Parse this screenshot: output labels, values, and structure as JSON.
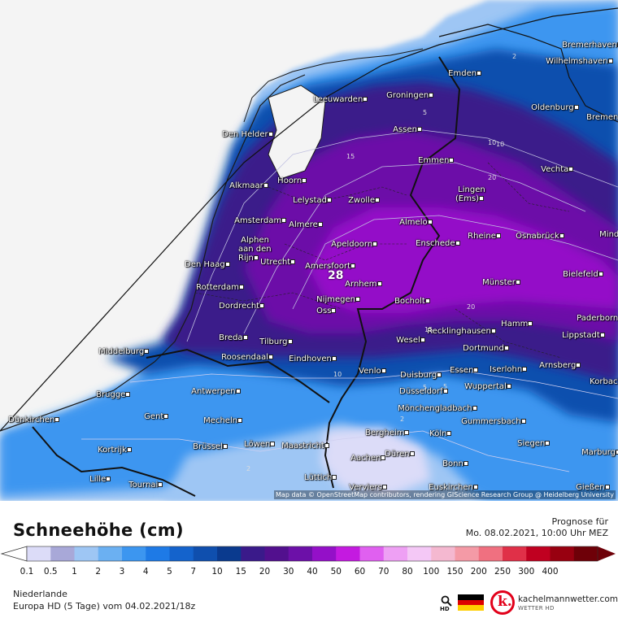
{
  "map": {
    "attribution": "Map data © OpenStreetMap contributors, rendering GIScience Research Group @ Heidelberg University",
    "max_value_label": "28",
    "cities": [
      {
        "name": "Bremerhaven"
      },
      {
        "name": "Wilhelmshaven"
      },
      {
        "name": "Emden"
      },
      {
        "name": "Groningen"
      },
      {
        "name": "Leeuwarden"
      },
      {
        "name": "Oldenburg"
      },
      {
        "name": "Bremen"
      },
      {
        "name": "Den Helder"
      },
      {
        "name": "Assen"
      },
      {
        "name": "Emmen"
      },
      {
        "name": "Vechta"
      },
      {
        "name": "Alkmaar"
      },
      {
        "name": "Hoorn"
      },
      {
        "name": "Lingen\n(Ems)"
      },
      {
        "name": "Lelystad"
      },
      {
        "name": "Zwolle"
      },
      {
        "name": "Amsterdam"
      },
      {
        "name": "Almere"
      },
      {
        "name": "Almelo"
      },
      {
        "name": "Rheine"
      },
      {
        "name": "Osnabrück"
      },
      {
        "name": "Minden"
      },
      {
        "name": "Alphen\naan den\nRijn"
      },
      {
        "name": "Apeldoorn"
      },
      {
        "name": "Enschede"
      },
      {
        "name": "Den Haag"
      },
      {
        "name": "Utrecht"
      },
      {
        "name": "Amersfoort"
      },
      {
        "name": "Bielefeld"
      },
      {
        "name": "Arnhem"
      },
      {
        "name": "Münster"
      },
      {
        "name": "Rotterdam"
      },
      {
        "name": "Nijmegen"
      },
      {
        "name": "Dordrecht"
      },
      {
        "name": "Oss"
      },
      {
        "name": "Bocholt"
      },
      {
        "name": "Paderborn"
      },
      {
        "name": "Hamm"
      },
      {
        "name": "Recklinghausen"
      },
      {
        "name": "Lippstadt"
      },
      {
        "name": "Breda"
      },
      {
        "name": "Tilburg"
      },
      {
        "name": "Wesel"
      },
      {
        "name": "Dortmund"
      },
      {
        "name": "Middelburg"
      },
      {
        "name": "Roosendaal"
      },
      {
        "name": "Eindhoven"
      },
      {
        "name": "Arnsberg"
      },
      {
        "name": "Venlo"
      },
      {
        "name": "Essen"
      },
      {
        "name": "Iserlohn"
      },
      {
        "name": "Duisburg"
      },
      {
        "name": "Korbach"
      },
      {
        "name": "Wuppertal"
      },
      {
        "name": "Antwerpen"
      },
      {
        "name": "Brugge"
      },
      {
        "name": "Düsseldorf"
      },
      {
        "name": "Mönchengladbach"
      },
      {
        "name": "Dünkirchen"
      },
      {
        "name": "Gent"
      },
      {
        "name": "Mecheln"
      },
      {
        "name": "Gummersbach"
      },
      {
        "name": "Bergheim"
      },
      {
        "name": "Köln"
      },
      {
        "name": "Siegen"
      },
      {
        "name": "Kortrijk"
      },
      {
        "name": "Brüssel"
      },
      {
        "name": "Löwen"
      },
      {
        "name": "Maastricht"
      },
      {
        "name": "Düren"
      },
      {
        "name": "Marburg"
      },
      {
        "name": "Aachen"
      },
      {
        "name": "Bonn"
      },
      {
        "name": "Lille"
      },
      {
        "name": "Lüttich"
      },
      {
        "name": "Tournai"
      },
      {
        "name": "Verviers"
      },
      {
        "name": "Euskirchen"
      },
      {
        "name": "Gießen"
      }
    ],
    "contour_labels": [
      "2",
      "5",
      "10",
      "15",
      "20",
      "20",
      "15",
      "10",
      "5",
      "2",
      "2",
      "10",
      "5"
    ]
  },
  "legend": {
    "title": "Schneehöhe (cm)",
    "forecast_label": "Prognose für",
    "forecast_time": "Mo. 08.02.2021, 10:00 Uhr MEZ",
    "ticks": [
      "0.1",
      "0.5",
      "1",
      "2",
      "3",
      "4",
      "5",
      "7",
      "10",
      "15",
      "20",
      "30",
      "40",
      "50",
      "60",
      "70",
      "80",
      "100",
      "150",
      "200",
      "250",
      "300",
      "400"
    ],
    "colors": [
      "#dcdcf8",
      "#a8a8d8",
      "#9ec6f4",
      "#6bb0f2",
      "#3c96f0",
      "#1e7ae6",
      "#1463cc",
      "#0f4fae",
      "#0a3a8e",
      "#3a1a8a",
      "#52108e",
      "#6c10a8",
      "#9410c8",
      "#c41ae0",
      "#e060f0",
      "#eea0f4",
      "#f4c8f6",
      "#f4b8d0",
      "#f49aa6",
      "#f07080",
      "#e03048",
      "#c00020",
      "#980010",
      "#6e0008"
    ]
  },
  "footer": {
    "region": "Niederlande",
    "model": "Europa HD (5 Tage) vom  04.02.2021/18z",
    "hd_label": "HD",
    "brand_name": "kachelmannwetter.com",
    "brand_sub": "WETTER HD",
    "logo_letter": "k."
  }
}
